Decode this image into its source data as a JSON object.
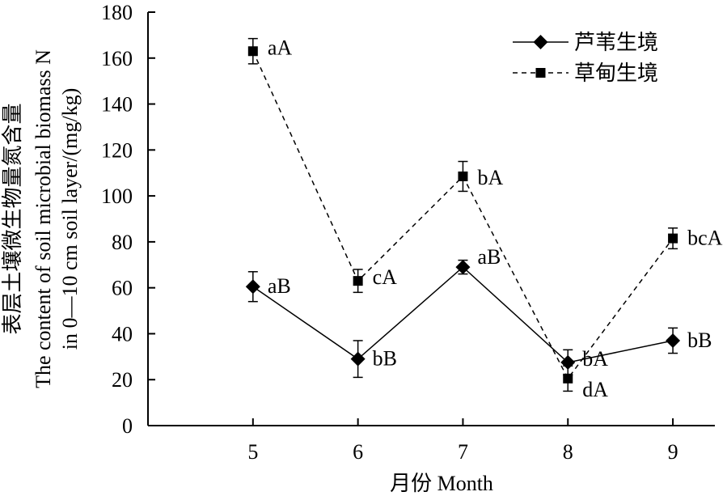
{
  "chart_data": {
    "type": "line",
    "xlabel": "月份 Month",
    "ylabel_lines": [
      "表层土壤微生物量氮含量",
      "The content of soil microbial biomass N",
      "in 0—10 cm soil layer/(mg/kg)"
    ],
    "x": [
      5,
      6,
      7,
      8,
      9
    ],
    "x_ticks": [
      "5",
      "6",
      "7",
      "8",
      "9"
    ],
    "xlim": [
      4,
      9.4
    ],
    "ylim": [
      0,
      180
    ],
    "y_ticks": [
      0,
      20,
      40,
      60,
      80,
      100,
      120,
      140,
      160,
      180
    ],
    "grid": false,
    "legend_position": "top-right",
    "series": [
      {
        "name": "芦苇生境",
        "marker": "diamond",
        "line_style": "solid",
        "color": "#000000",
        "values": [
          60.5,
          29,
          69,
          27.5,
          37
        ],
        "errors": [
          6.5,
          8,
          3,
          5.5,
          5.5
        ],
        "labels": [
          "aB",
          "bB",
          "aB",
          "bA",
          "bB"
        ]
      },
      {
        "name": "草甸生境",
        "marker": "square",
        "line_style": "dashed",
        "color": "#000000",
        "values": [
          163,
          63,
          108.5,
          20.5,
          81.5
        ],
        "errors": [
          5.5,
          5,
          6.5,
          5.5,
          4.5
        ],
        "labels": [
          "aA",
          "cA",
          "bA",
          "dA",
          "bcA"
        ]
      }
    ]
  }
}
